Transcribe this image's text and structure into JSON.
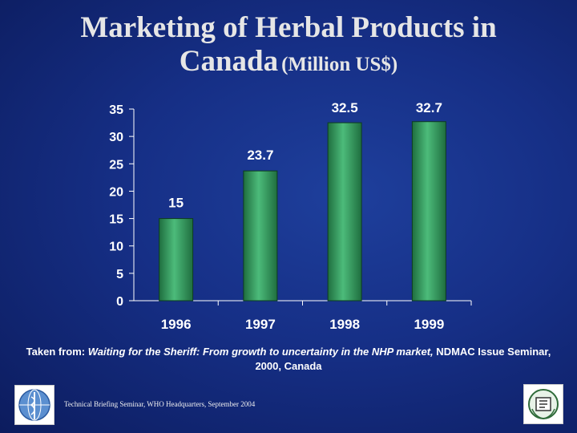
{
  "slide": {
    "title_line1": "Marketing of Herbal Products in",
    "title_line2": "Canada",
    "title_unit": "(Million US$)",
    "caption_prefix": "Taken from: ",
    "caption_cite": "Waiting for the Sheriff: From growth to uncertainty in the NHP market,",
    "caption_suffix": " NDMAC Issue Seminar, 2000, Canada",
    "footer": "Technical Briefing Seminar, WHO Headquarters, September 2004"
  },
  "logos": {
    "left": "who-emblem-icon",
    "right": "organization-logo-icon"
  },
  "colors": {
    "background": "#162f86",
    "bar_fill": "#2e8b57",
    "bar_highlight": "#4cbb7a",
    "text": "#ffffff"
  },
  "chart_data": {
    "type": "bar",
    "categories": [
      "1996",
      "1997",
      "1998",
      "1999"
    ],
    "values": [
      15,
      23.7,
      32.5,
      32.7
    ],
    "data_labels": [
      "15",
      "23.7",
      "32.5",
      "32.7"
    ],
    "y_ticks": [
      "0",
      "5",
      "10",
      "15",
      "20",
      "25",
      "30",
      "35"
    ],
    "ylim": [
      0,
      35
    ],
    "grid": false,
    "legend": "none"
  }
}
